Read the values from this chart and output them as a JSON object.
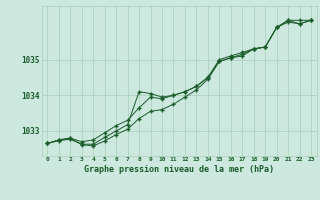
{
  "background_color": "#cce8df",
  "grid_color": "#aaccbb",
  "line_color": "#1a5c2a",
  "title": "Graphe pression niveau de la mer (hPa)",
  "xlim": [
    -0.5,
    23.5
  ],
  "ylim": [
    1032.3,
    1036.5
  ],
  "yticks": [
    1033,
    1034,
    1035
  ],
  "xticks": [
    0,
    1,
    2,
    3,
    4,
    5,
    6,
    7,
    8,
    9,
    10,
    11,
    12,
    13,
    14,
    15,
    16,
    17,
    18,
    19,
    20,
    21,
    22,
    23
  ],
  "series": [
    {
      "x": [
        0,
        1,
        2,
        3,
        4,
        5,
        6,
        7,
        8,
        9,
        10,
        11,
        12,
        13,
        14,
        15,
        16,
        17,
        18,
        19,
        20,
        21,
        22,
        23
      ],
      "y": [
        1032.65,
        1032.75,
        1032.8,
        1032.62,
        1032.58,
        1032.72,
        1032.9,
        1033.05,
        1033.35,
        1033.55,
        1033.6,
        1033.75,
        1033.95,
        1034.15,
        1034.45,
        1034.95,
        1035.05,
        1035.1,
        1035.3,
        1035.35,
        1035.9,
        1036.05,
        1036.0,
        1036.1
      ]
    },
    {
      "x": [
        0,
        1,
        2,
        3,
        4,
        5,
        6,
        7,
        8,
        9,
        10,
        11,
        12,
        13,
        14,
        15,
        16,
        17,
        18,
        19,
        20,
        21,
        22,
        23
      ],
      "y": [
        1032.65,
        1032.75,
        1032.8,
        1032.7,
        1032.75,
        1032.95,
        1033.15,
        1033.3,
        1033.65,
        1033.95,
        1033.9,
        1034.0,
        1034.1,
        1034.25,
        1034.5,
        1035.0,
        1035.1,
        1035.2,
        1035.3,
        1035.35,
        1035.9,
        1036.1,
        1036.1,
        1036.1
      ]
    },
    {
      "x": [
        0,
        1,
        2,
        3,
        4,
        5,
        6,
        7,
        8,
        9,
        10,
        11,
        12,
        13,
        14,
        15,
        16,
        17,
        18,
        19,
        20,
        21,
        22,
        23
      ],
      "y": [
        1032.65,
        1032.73,
        1032.77,
        1032.63,
        1032.63,
        1032.82,
        1033.0,
        1033.18,
        1034.1,
        1034.05,
        1033.95,
        1034.0,
        1034.1,
        1034.25,
        1034.5,
        1034.95,
        1035.05,
        1035.15,
        1035.3,
        1035.35,
        1035.9,
        1036.1,
        1036.0,
        1036.1
      ]
    }
  ]
}
